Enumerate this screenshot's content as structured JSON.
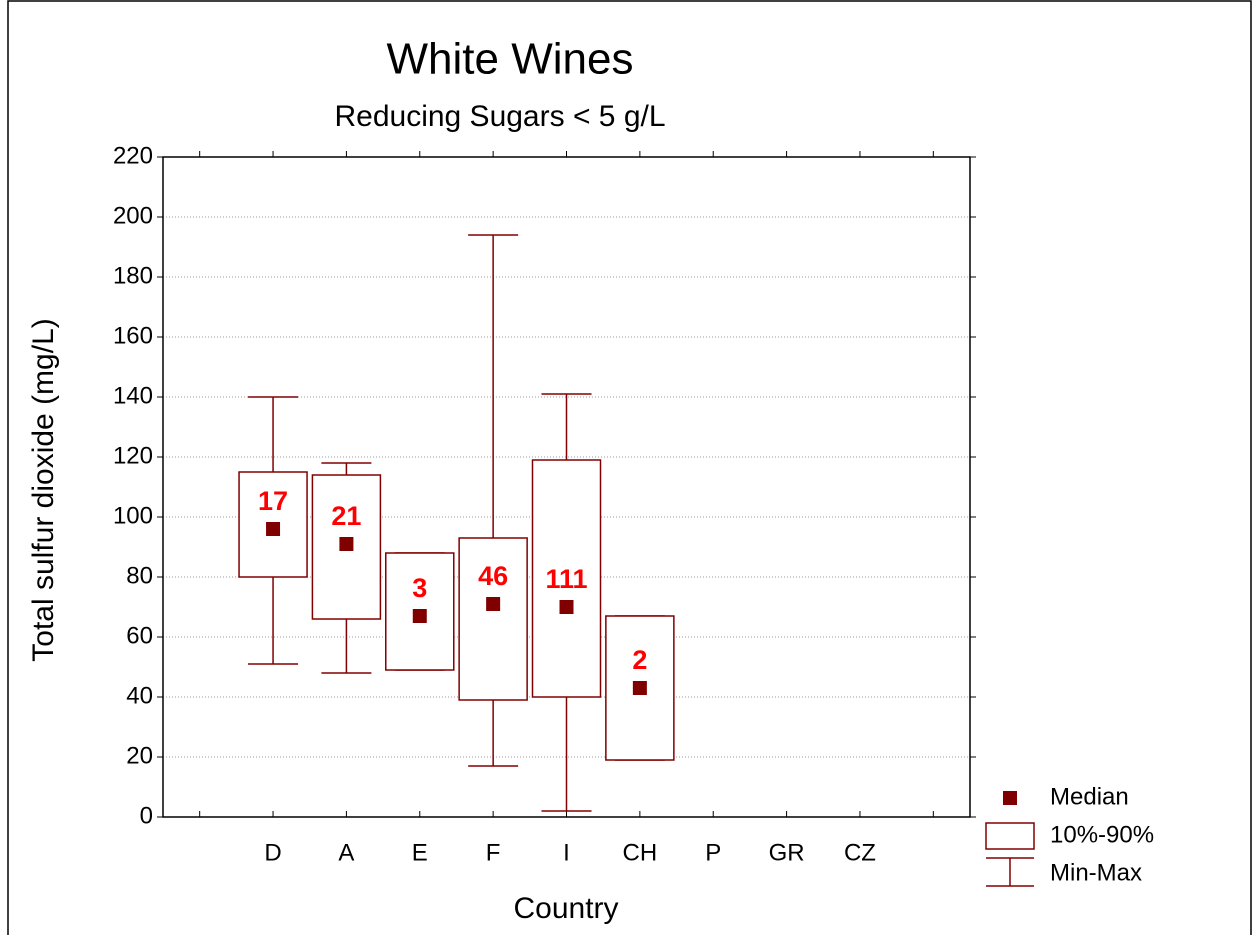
{
  "chart_data": {
    "type": "box",
    "title": "White Wines",
    "subtitle": "Reducing Sugars < 5 g/L",
    "y_label": "Total sulfur dioxide (mg/L)",
    "x_label": "Country",
    "categories": [
      "D",
      "A",
      "E",
      "F",
      "I",
      "CH",
      "P",
      "GR",
      "CZ"
    ],
    "min": [
      51,
      48,
      49,
      17,
      2,
      19,
      null,
      null,
      null
    ],
    "q10": [
      80,
      66,
      49,
      39,
      40,
      19,
      null,
      null,
      null
    ],
    "median": [
      96,
      91,
      67,
      71,
      70,
      43,
      null,
      null,
      null
    ],
    "q90": [
      115,
      114,
      88,
      93,
      119,
      67,
      null,
      null,
      null
    ],
    "max": [
      140,
      118,
      88,
      194,
      141,
      67,
      null,
      null,
      null
    ],
    "counts": [
      17,
      21,
      3,
      46,
      111,
      2,
      null,
      null,
      null
    ],
    "color": "#800000",
    "count_color": "#ff0000",
    "ylim": [
      0,
      220
    ],
    "yticks": [
      0,
      20,
      40,
      60,
      80,
      100,
      120,
      140,
      160,
      180,
      200,
      220
    ],
    "grid": true,
    "legend": [
      "Median",
      "10%-90%",
      "Min-Max"
    ],
    "legend_position": "lower right"
  }
}
